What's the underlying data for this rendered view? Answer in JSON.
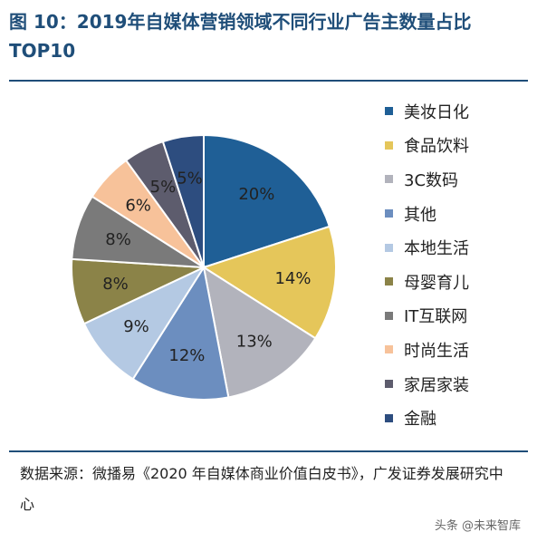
{
  "header": {
    "title": "图 10：2019年自媒体营销领域不同行业广告主数量占比TOP10"
  },
  "chart_data": {
    "type": "pie",
    "title": "图 10：2019年自媒体营销领域不同行业广告主数量占比TOP10",
    "categories": [
      "美妆日化",
      "食品饮料",
      "3C数码",
      "其他",
      "本地生活",
      "母婴育儿",
      "IT互联网",
      "时尚生活",
      "家居家装",
      "金融"
    ],
    "values": [
      20,
      14,
      13,
      12,
      9,
      8,
      8,
      6,
      5,
      5
    ],
    "labels": [
      "20%",
      "14%",
      "13%",
      "12%",
      "9%",
      "8%",
      "8%",
      "6%",
      "5%",
      "5%"
    ],
    "colors": [
      "#1f5f96",
      "#e5c65a",
      "#b2b3bc",
      "#6c8ebf",
      "#b4c9e3",
      "#8b8348",
      "#7a7a7a",
      "#f7c29a",
      "#5d5c6d",
      "#2d4d7f"
    ],
    "label_colors": [
      "#222222",
      "#222222",
      "#222222",
      "#222222",
      "#222222",
      "#222222",
      "#222222",
      "#222222",
      "#222222",
      "#2d4d7f"
    ],
    "legend_position": "right"
  },
  "footer": {
    "source": "数据来源：微播易《2020 年自媒体商业价值白皮书》，广发证券发展研究中心",
    "watermark": "头条 @未来智库"
  }
}
